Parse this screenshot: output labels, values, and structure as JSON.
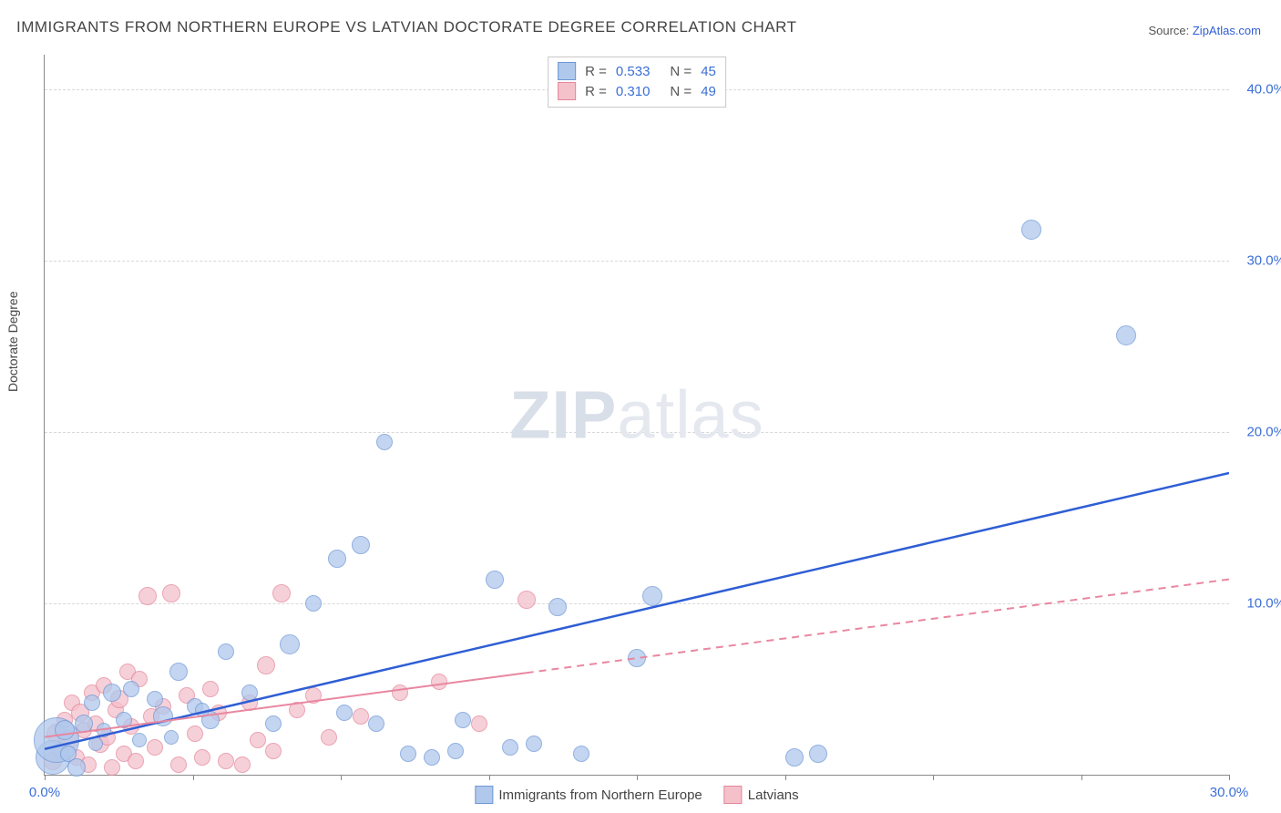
{
  "title": "IMMIGRANTS FROM NORTHERN EUROPE VS LATVIAN DOCTORATE DEGREE CORRELATION CHART",
  "source_prefix": "Source: ",
  "source_name": "ZipAtlas.com",
  "ylabel": "Doctorate Degree",
  "watermark": {
    "zip": "ZIP",
    "atlas": "atlas"
  },
  "chart": {
    "type": "scatter",
    "xlim": [
      0,
      30
    ],
    "ylim": [
      0,
      42
    ],
    "x_ticks_major": [
      0,
      30
    ],
    "x_ticks_minor": [
      3.75,
      7.5,
      11.25,
      15,
      18.75,
      22.5,
      26.25
    ],
    "y_ticks": [
      10,
      20,
      30,
      40
    ],
    "xlabel_format": "{v}.0%",
    "ylabel_format": "{v}.0%",
    "grid_color": "#d8d8d8",
    "axis_color": "#888888",
    "background": "#ffffff",
    "tick_label_color": "#3b6fd6",
    "series": [
      {
        "key": "blue",
        "name": "Immigrants from Northern Europe",
        "fill": "#afc8ec",
        "stroke": "#6f97d6",
        "opacity": 0.75,
        "R": "0.533",
        "N": "45",
        "trend": {
          "x1": 0,
          "y1": 1.5,
          "x2": 30,
          "y2": 17.6,
          "color": "#2f5ed4",
          "width": 2.5,
          "dash": false,
          "solid_max_x": 30
        },
        "points": [
          {
            "x": 0.2,
            "y": 1.0,
            "r": 18
          },
          {
            "x": 0.3,
            "y": 2.0,
            "r": 24
          },
          {
            "x": 0.5,
            "y": 2.6,
            "r": 10
          },
          {
            "x": 0.6,
            "y": 1.2,
            "r": 8
          },
          {
            "x": 0.8,
            "y": 0.4,
            "r": 9
          },
          {
            "x": 1.0,
            "y": 3.0,
            "r": 9
          },
          {
            "x": 1.2,
            "y": 4.2,
            "r": 8
          },
          {
            "x": 1.3,
            "y": 1.8,
            "r": 7
          },
          {
            "x": 1.5,
            "y": 2.6,
            "r": 7
          },
          {
            "x": 1.7,
            "y": 4.8,
            "r": 9
          },
          {
            "x": 2.0,
            "y": 3.2,
            "r": 8
          },
          {
            "x": 2.2,
            "y": 5.0,
            "r": 8
          },
          {
            "x": 2.4,
            "y": 2.0,
            "r": 7
          },
          {
            "x": 2.8,
            "y": 4.4,
            "r": 8
          },
          {
            "x": 3.0,
            "y": 3.4,
            "r": 10
          },
          {
            "x": 3.4,
            "y": 6.0,
            "r": 9
          },
          {
            "x": 3.8,
            "y": 4.0,
            "r": 8
          },
          {
            "x": 4.2,
            "y": 3.2,
            "r": 9
          },
          {
            "x": 4.6,
            "y": 7.2,
            "r": 8
          },
          {
            "x": 5.2,
            "y": 4.8,
            "r": 8
          },
          {
            "x": 5.8,
            "y": 3.0,
            "r": 8
          },
          {
            "x": 6.2,
            "y": 7.6,
            "r": 10
          },
          {
            "x": 6.8,
            "y": 10.0,
            "r": 8
          },
          {
            "x": 7.4,
            "y": 12.6,
            "r": 9
          },
          {
            "x": 7.6,
            "y": 3.6,
            "r": 8
          },
          {
            "x": 8.0,
            "y": 13.4,
            "r": 9
          },
          {
            "x": 8.4,
            "y": 3.0,
            "r": 8
          },
          {
            "x": 8.6,
            "y": 19.4,
            "r": 8
          },
          {
            "x": 9.2,
            "y": 1.2,
            "r": 8
          },
          {
            "x": 9.8,
            "y": 1.0,
            "r": 8
          },
          {
            "x": 10.4,
            "y": 1.4,
            "r": 8
          },
          {
            "x": 10.6,
            "y": 3.2,
            "r": 8
          },
          {
            "x": 11.4,
            "y": 11.4,
            "r": 9
          },
          {
            "x": 11.8,
            "y": 1.6,
            "r": 8
          },
          {
            "x": 12.4,
            "y": 1.8,
            "r": 8
          },
          {
            "x": 13.0,
            "y": 9.8,
            "r": 9
          },
          {
            "x": 13.6,
            "y": 1.2,
            "r": 8
          },
          {
            "x": 15.0,
            "y": 6.8,
            "r": 9
          },
          {
            "x": 15.4,
            "y": 10.4,
            "r": 10
          },
          {
            "x": 19.0,
            "y": 1.0,
            "r": 9
          },
          {
            "x": 19.6,
            "y": 1.2,
            "r": 9
          },
          {
            "x": 25.0,
            "y": 31.8,
            "r": 10
          },
          {
            "x": 27.4,
            "y": 25.6,
            "r": 10
          },
          {
            "x": 4.0,
            "y": 3.8,
            "r": 7
          },
          {
            "x": 3.2,
            "y": 2.2,
            "r": 7
          }
        ]
      },
      {
        "key": "pink",
        "name": "Latvians",
        "fill": "#f4c1cb",
        "stroke": "#e4869b",
        "opacity": 0.75,
        "R": "0.310",
        "N": "49",
        "trend": {
          "x1": 0,
          "y1": 2.2,
          "x2": 30,
          "y2": 11.4,
          "color": "#e987a0",
          "width": 2,
          "dash": true,
          "solid_max_x": 12.2
        },
        "points": [
          {
            "x": 0.2,
            "y": 0.8,
            "r": 9
          },
          {
            "x": 0.3,
            "y": 2.4,
            "r": 10
          },
          {
            "x": 0.4,
            "y": 1.4,
            "r": 8
          },
          {
            "x": 0.5,
            "y": 3.2,
            "r": 8
          },
          {
            "x": 0.6,
            "y": 2.0,
            "r": 10
          },
          {
            "x": 0.7,
            "y": 4.2,
            "r": 8
          },
          {
            "x": 0.8,
            "y": 1.0,
            "r": 8
          },
          {
            "x": 0.9,
            "y": 3.6,
            "r": 9
          },
          {
            "x": 1.0,
            "y": 2.6,
            "r": 8
          },
          {
            "x": 1.1,
            "y": 0.6,
            "r": 8
          },
          {
            "x": 1.2,
            "y": 4.8,
            "r": 8
          },
          {
            "x": 1.3,
            "y": 3.0,
            "r": 8
          },
          {
            "x": 1.4,
            "y": 1.8,
            "r": 9
          },
          {
            "x": 1.5,
            "y": 5.2,
            "r": 8
          },
          {
            "x": 1.6,
            "y": 2.2,
            "r": 8
          },
          {
            "x": 1.7,
            "y": 0.4,
            "r": 8
          },
          {
            "x": 1.8,
            "y": 3.8,
            "r": 8
          },
          {
            "x": 1.9,
            "y": 4.4,
            "r": 9
          },
          {
            "x": 2.0,
            "y": 1.2,
            "r": 8
          },
          {
            "x": 2.1,
            "y": 6.0,
            "r": 8
          },
          {
            "x": 2.2,
            "y": 2.8,
            "r": 8
          },
          {
            "x": 2.3,
            "y": 0.8,
            "r": 8
          },
          {
            "x": 2.4,
            "y": 5.6,
            "r": 8
          },
          {
            "x": 2.6,
            "y": 10.4,
            "r": 9
          },
          {
            "x": 2.7,
            "y": 3.4,
            "r": 8
          },
          {
            "x": 2.8,
            "y": 1.6,
            "r": 8
          },
          {
            "x": 3.0,
            "y": 4.0,
            "r": 8
          },
          {
            "x": 3.2,
            "y": 10.6,
            "r": 9
          },
          {
            "x": 3.4,
            "y": 0.6,
            "r": 8
          },
          {
            "x": 3.6,
            "y": 4.6,
            "r": 8
          },
          {
            "x": 3.8,
            "y": 2.4,
            "r": 8
          },
          {
            "x": 4.0,
            "y": 1.0,
            "r": 8
          },
          {
            "x": 4.2,
            "y": 5.0,
            "r": 8
          },
          {
            "x": 4.4,
            "y": 3.6,
            "r": 8
          },
          {
            "x": 4.6,
            "y": 0.8,
            "r": 8
          },
          {
            "x": 5.0,
            "y": 0.6,
            "r": 8
          },
          {
            "x": 5.2,
            "y": 4.2,
            "r": 8
          },
          {
            "x": 5.4,
            "y": 2.0,
            "r": 8
          },
          {
            "x": 5.6,
            "y": 6.4,
            "r": 9
          },
          {
            "x": 5.8,
            "y": 1.4,
            "r": 8
          },
          {
            "x": 6.0,
            "y": 10.6,
            "r": 9
          },
          {
            "x": 6.4,
            "y": 3.8,
            "r": 8
          },
          {
            "x": 6.8,
            "y": 4.6,
            "r": 8
          },
          {
            "x": 7.2,
            "y": 2.2,
            "r": 8
          },
          {
            "x": 8.0,
            "y": 3.4,
            "r": 8
          },
          {
            "x": 9.0,
            "y": 4.8,
            "r": 8
          },
          {
            "x": 10.0,
            "y": 5.4,
            "r": 8
          },
          {
            "x": 11.0,
            "y": 3.0,
            "r": 8
          },
          {
            "x": 12.2,
            "y": 10.2,
            "r": 9
          }
        ]
      }
    ]
  },
  "legend_top": {
    "r_label": "R =",
    "n_label": "N ="
  },
  "legend_bottom_order": [
    "blue",
    "pink"
  ]
}
